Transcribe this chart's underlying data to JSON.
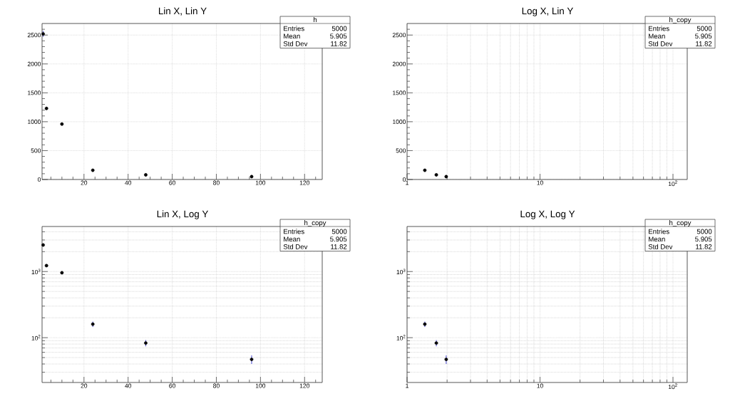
{
  "chart_data": [
    {
      "type": "scatter",
      "title": "Lin X, Lin Y",
      "x": [
        1.5,
        3,
        10,
        24,
        48,
        96
      ],
      "series": [
        {
          "color": "#000000",
          "values": [
            2520,
            1230,
            960,
            160,
            80,
            50
          ],
          "errors": [
            50,
            null,
            null,
            null,
            null,
            null
          ]
        }
      ],
      "xlim": [
        1,
        128
      ],
      "xticks": [
        {
          "value": 5,
          "label": null
        },
        {
          "value": 10,
          "label": null
        },
        {
          "value": 15,
          "label": null
        },
        20,
        {
          "value": 25,
          "label": null
        },
        {
          "value": 30,
          "label": null
        },
        {
          "value": 35,
          "label": null
        },
        40,
        {
          "value": 45,
          "label": null
        },
        {
          "value": 50,
          "label": null
        },
        {
          "value": 55,
          "label": null
        },
        60,
        {
          "value": 65,
          "label": null
        },
        {
          "value": 70,
          "label": null
        },
        {
          "value": 75,
          "label": null
        },
        80,
        {
          "value": 85,
          "label": null
        },
        {
          "value": 90,
          "label": null
        },
        {
          "value": 95,
          "label": null
        },
        100,
        {
          "value": 105,
          "label": null
        },
        {
          "value": 110,
          "label": null
        },
        {
          "value": 115,
          "label": null
        },
        120,
        {
          "value": 125,
          "label": null
        }
      ],
      "ylim": [
        0,
        2700
      ],
      "yticks": [
        0,
        {
          "value": 100,
          "label": null
        },
        {
          "value": 200,
          "label": null
        },
        {
          "value": 300,
          "label": null
        },
        {
          "value": 400,
          "label": null
        },
        500,
        {
          "value": 600,
          "label": null
        },
        {
          "value": 700,
          "label": null
        },
        {
          "value": 800,
          "label": null
        },
        {
          "value": 900,
          "label": null
        },
        1000,
        {
          "value": 1100,
          "label": null
        },
        {
          "value": 1200,
          "label": null
        },
        {
          "value": 1300,
          "label": null
        },
        {
          "value": 1400,
          "label": null
        },
        1500,
        {
          "value": 1600,
          "label": null
        },
        {
          "value": 1700,
          "label": null
        },
        {
          "value": 1800,
          "label": null
        },
        {
          "value": 1900,
          "label": null
        },
        2000,
        {
          "value": 2100,
          "label": null
        },
        {
          "value": 2200,
          "label": null
        },
        {
          "value": 2300,
          "label": null
        },
        {
          "value": 2400,
          "label": null
        },
        2500,
        {
          "value": 2600,
          "label": null
        }
      ],
      "grid": true,
      "marker": "circle",
      "annotations": [
        "h",
        "Entries",
        "5000",
        "Mean",
        "5.905",
        "Std Dev",
        "11.82"
      ]
    },
    {
      "type": "scatter",
      "title": "Log X, Lin Y",
      "x": [
        1.36,
        1.66,
        1.97
      ],
      "series": [
        {
          "color": "#000000",
          "values": [
            160,
            80,
            50
          ]
        }
      ],
      "log": "x",
      "xlim": [
        1,
        128
      ],
      "xticks": [
        1,
        {
          "value": 2,
          "label": null
        },
        {
          "value": 3,
          "label": null
        },
        {
          "value": 4,
          "label": null
        },
        {
          "value": 5,
          "label": null
        },
        {
          "value": 6,
          "label": null
        },
        {
          "value": 7,
          "label": null
        },
        {
          "value": 8,
          "label": null
        },
        {
          "value": 9,
          "label": null
        },
        10,
        {
          "value": 20,
          "label": null
        },
        {
          "value": 30,
          "label": null
        },
        {
          "value": 40,
          "label": null
        },
        {
          "value": 50,
          "label": null
        },
        {
          "value": 60,
          "label": null
        },
        {
          "value": 70,
          "label": null
        },
        {
          "value": 80,
          "label": null
        },
        {
          "value": 90,
          "label": null
        },
        {
          "value": 100,
          "label": "10$^{2}$"
        }
      ],
      "ylim": [
        0,
        2700
      ],
      "yticks": [
        0,
        {
          "value": 100,
          "label": null
        },
        {
          "value": 200,
          "label": null
        },
        {
          "value": 300,
          "label": null
        },
        {
          "value": 400,
          "label": null
        },
        500,
        {
          "value": 600,
          "label": null
        },
        {
          "value": 700,
          "label": null
        },
        {
          "value": 800,
          "label": null
        },
        {
          "value": 900,
          "label": null
        },
        1000,
        {
          "value": 1100,
          "label": null
        },
        {
          "value": 1200,
          "label": null
        },
        {
          "value": 1300,
          "label": null
        },
        {
          "value": 1400,
          "label": null
        },
        1500,
        {
          "value": 1600,
          "label": null
        },
        {
          "value": 1700,
          "label": null
        },
        {
          "value": 1800,
          "label": null
        },
        {
          "value": 1900,
          "label": null
        },
        2000,
        {
          "value": 2100,
          "label": null
        },
        {
          "value": 2200,
          "label": null
        },
        {
          "value": 2300,
          "label": null
        },
        {
          "value": 2400,
          "label": null
        },
        2500,
        {
          "value": 2600,
          "label": null
        }
      ],
      "grid": true,
      "marker": "circle",
      "annotations": [
        "h_copy",
        "Entries",
        "5000",
        "Mean",
        "5.905",
        "Std Dev",
        "11.82"
      ]
    },
    {
      "type": "scatter",
      "title": "Lin X, Log Y",
      "x": [
        1.5,
        3,
        10,
        24,
        48,
        96
      ],
      "series": [
        {
          "color": "#000000",
          "values": [
            2520,
            1230,
            960,
            160,
            83,
            47
          ],
          "errors": [
            null,
            null,
            null,
            15,
            9,
            7
          ]
        }
      ],
      "log": "y",
      "xlim": [
        1,
        128
      ],
      "xticks": [
        {
          "value": 5,
          "label": null
        },
        {
          "value": 10,
          "label": null
        },
        {
          "value": 15,
          "label": null
        },
        20,
        {
          "value": 25,
          "label": null
        },
        {
          "value": 30,
          "label": null
        },
        {
          "value": 35,
          "label": null
        },
        40,
        {
          "value": 45,
          "label": null
        },
        {
          "value": 50,
          "label": null
        },
        {
          "value": 55,
          "label": null
        },
        60,
        {
          "value": 65,
          "label": null
        },
        {
          "value": 70,
          "label": null
        },
        {
          "value": 75,
          "label": null
        },
        80,
        {
          "value": 85,
          "label": null
        },
        {
          "value": 90,
          "label": null
        },
        {
          "value": 95,
          "label": null
        },
        100,
        {
          "value": 105,
          "label": null
        },
        {
          "value": 110,
          "label": null
        },
        {
          "value": 115,
          "label": null
        },
        120,
        {
          "value": 125,
          "label": null
        }
      ],
      "ylim": [
        21,
        4800
      ],
      "yticks": [
        {
          "value": 30,
          "label": null
        },
        {
          "value": 40,
          "label": null
        },
        {
          "value": 50,
          "label": null
        },
        {
          "value": 60,
          "label": null
        },
        {
          "value": 70,
          "label": null
        },
        {
          "value": 80,
          "label": null
        },
        {
          "value": 90,
          "label": null
        },
        {
          "value": 100,
          "label": "10$^{2}$"
        },
        {
          "value": 200,
          "label": null
        },
        {
          "value": 300,
          "label": null
        },
        {
          "value": 400,
          "label": null
        },
        {
          "value": 500,
          "label": null
        },
        {
          "value": 600,
          "label": null
        },
        {
          "value": 700,
          "label": null
        },
        {
          "value": 800,
          "label": null
        },
        {
          "value": 900,
          "label": null
        },
        {
          "value": 1000,
          "label": "10$^{3}$"
        },
        {
          "value": 2000,
          "label": null
        },
        {
          "value": 3000,
          "label": null
        },
        {
          "value": 4000,
          "label": null
        }
      ],
      "grid": true,
      "marker": "circle",
      "annotations": [
        "h_copy",
        "Entries",
        "5000",
        "Mean",
        "5.905",
        "Std Dev",
        "11.82"
      ]
    },
    {
      "type": "scatter",
      "title": "Log X, Log Y",
      "x": [
        1.36,
        1.66,
        1.97
      ],
      "series": [
        {
          "color": "#000000",
          "values": [
            160,
            83,
            47
          ],
          "errors": [
            15,
            9,
            7
          ]
        }
      ],
      "log": "xy",
      "xlim": [
        1,
        128
      ],
      "xticks": [
        1,
        {
          "value": 2,
          "label": null
        },
        {
          "value": 3,
          "label": null
        },
        {
          "value": 4,
          "label": null
        },
        {
          "value": 5,
          "label": null
        },
        {
          "value": 6,
          "label": null
        },
        {
          "value": 7,
          "label": null
        },
        {
          "value": 8,
          "label": null
        },
        {
          "value": 9,
          "label": null
        },
        10,
        {
          "value": 20,
          "label": null
        },
        {
          "value": 30,
          "label": null
        },
        {
          "value": 40,
          "label": null
        },
        {
          "value": 50,
          "label": null
        },
        {
          "value": 60,
          "label": null
        },
        {
          "value": 70,
          "label": null
        },
        {
          "value": 80,
          "label": null
        },
        {
          "value": 90,
          "label": null
        },
        {
          "value": 100,
          "label": "10$^{2}$"
        }
      ],
      "ylim": [
        21,
        4800
      ],
      "yticks": [
        {
          "value": 30,
          "label": null
        },
        {
          "value": 40,
          "label": null
        },
        {
          "value": 50,
          "label": null
        },
        {
          "value": 60,
          "label": null
        },
        {
          "value": 70,
          "label": null
        },
        {
          "value": 80,
          "label": null
        },
        {
          "value": 90,
          "label": null
        },
        {
          "value": 100,
          "label": "10$^{2}$"
        },
        {
          "value": 200,
          "label": null
        },
        {
          "value": 300,
          "label": null
        },
        {
          "value": 400,
          "label": null
        },
        {
          "value": 500,
          "label": null
        },
        {
          "value": 600,
          "label": null
        },
        {
          "value": 700,
          "label": null
        },
        {
          "value": 800,
          "label": null
        },
        {
          "value": 900,
          "label": null
        },
        {
          "value": 1000,
          "label": "10$^{3}$"
        },
        {
          "value": 2000,
          "label": null
        },
        {
          "value": 3000,
          "label": null
        },
        {
          "value": 4000,
          "label": null
        }
      ],
      "grid": true,
      "marker": "circle",
      "annotations": [
        "h_copy",
        "Entries",
        "5000",
        "Mean",
        "5.905",
        "Std Dev",
        "11.82"
      ]
    }
  ]
}
